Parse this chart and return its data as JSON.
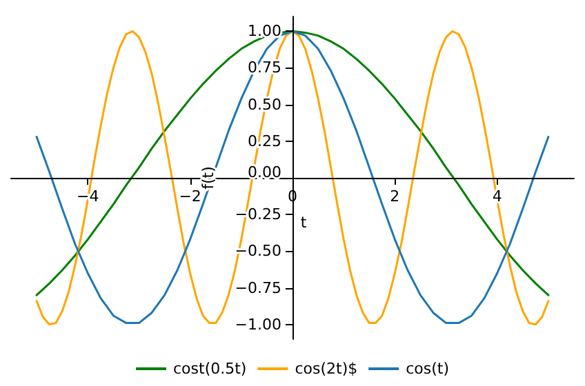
{
  "chart_data": {
    "type": "line",
    "xlabel": "t",
    "ylabel": "f(t)",
    "xlim": [
      -5.5,
      5.5
    ],
    "ylim": [
      -1.1,
      1.1
    ],
    "xticks": [
      {
        "value": -4,
        "label": "−4"
      },
      {
        "value": -2,
        "label": "−2"
      },
      {
        "value": 0,
        "label": "0"
      },
      {
        "value": 2,
        "label": "2"
      },
      {
        "value": 4,
        "label": "4"
      }
    ],
    "yticks": [
      {
        "value": -1,
        "label": "−1.00"
      },
      {
        "value": -0.75,
        "label": "−0.75"
      },
      {
        "value": -0.5,
        "label": "−0.50"
      },
      {
        "value": -0.25,
        "label": "−0.25"
      },
      {
        "value": 0,
        "label": "0.00"
      },
      {
        "value": 0.25,
        "label": "0.25"
      },
      {
        "value": 0.5,
        "label": "0.50"
      },
      {
        "value": 0.75,
        "label": "0.75"
      },
      {
        "value": 1,
        "label": "1.00"
      }
    ],
    "grid": false,
    "legend": "bottom",
    "marker": "none",
    "line_style": "solid",
    "series": [
      {
        "name": "cost(0.5t)",
        "color": "#008000",
        "x": [
          -5,
          -4.75,
          -4.5,
          -4.25,
          -4,
          -3.75,
          -3.5,
          -3.25,
          -3,
          -2.75,
          -2.5,
          -2.25,
          -2,
          -1.75,
          -1.5,
          -1.25,
          -1,
          -0.75,
          -0.5,
          -0.25,
          0,
          0.25,
          0.5,
          0.75,
          1,
          1.25,
          1.5,
          1.75,
          2,
          2.25,
          2.5,
          2.75,
          3,
          3.25,
          3.5,
          3.75,
          4,
          4.25,
          4.5,
          4.75,
          5
        ],
        "values": [
          -0.8,
          -0.72,
          -0.63,
          -0.53,
          -0.42,
          -0.3,
          -0.18,
          -0.05,
          0.07,
          0.2,
          0.32,
          0.43,
          0.54,
          0.64,
          0.73,
          0.81,
          0.88,
          0.93,
          0.97,
          0.99,
          1,
          0.99,
          0.97,
          0.93,
          0.88,
          0.81,
          0.73,
          0.64,
          0.54,
          0.43,
          0.32,
          0.2,
          0.07,
          -0.05,
          -0.18,
          -0.3,
          -0.42,
          -0.53,
          -0.63,
          -0.72,
          -0.8
        ]
      },
      {
        "name": "cos(2t)$",
        "color": "#ffa500",
        "x": [
          -5,
          -4.875,
          -4.75,
          -4.625,
          -4.5,
          -4.375,
          -4.25,
          -4.125,
          -4,
          -3.875,
          -3.75,
          -3.625,
          -3.5,
          -3.375,
          -3.25,
          -3.125,
          -3,
          -2.875,
          -2.75,
          -2.625,
          -2.5,
          -2.375,
          -2.25,
          -2.125,
          -2,
          -1.875,
          -1.75,
          -1.625,
          -1.5,
          -1.375,
          -1.25,
          -1.125,
          -1,
          -0.875,
          -0.75,
          -0.625,
          -0.5,
          -0.375,
          -0.25,
          -0.125,
          0,
          0.125,
          0.25,
          0.375,
          0.5,
          0.625,
          0.75,
          0.875,
          1,
          1.125,
          1.25,
          1.375,
          1.5,
          1.625,
          1.75,
          1.875,
          2,
          2.125,
          2.25,
          2.375,
          2.5,
          2.625,
          2.75,
          2.875,
          3,
          3.125,
          3.25,
          3.375,
          3.5,
          3.625,
          3.75,
          3.875,
          4,
          4.125,
          4.25,
          4.375,
          4.5,
          4.625,
          4.75,
          4.875,
          5
        ],
        "values": [
          -0.84,
          -0.95,
          -1,
          -0.99,
          -0.91,
          -0.78,
          -0.6,
          -0.39,
          -0.15,
          0.11,
          0.35,
          0.57,
          0.75,
          0.89,
          0.98,
          1,
          0.96,
          0.86,
          0.71,
          0.51,
          0.28,
          0.04,
          -0.21,
          -0.45,
          -0.65,
          -0.82,
          -0.94,
          -0.99,
          -0.99,
          -0.92,
          -0.8,
          -0.63,
          -0.42,
          -0.18,
          0.07,
          0.32,
          0.54,
          0.73,
          0.88,
          0.97,
          1,
          0.97,
          0.88,
          0.73,
          0.54,
          0.32,
          0.07,
          -0.18,
          -0.42,
          -0.63,
          -0.8,
          -0.92,
          -0.99,
          -0.99,
          -0.94,
          -0.82,
          -0.65,
          -0.45,
          -0.21,
          0.04,
          0.28,
          0.51,
          0.71,
          0.86,
          0.96,
          1,
          0.98,
          0.89,
          0.75,
          0.57,
          0.35,
          0.11,
          -0.15,
          -0.39,
          -0.6,
          -0.78,
          -0.91,
          -0.99,
          -1,
          -0.95,
          -0.84
        ]
      },
      {
        "name": "cos(t)",
        "color": "#1f77b4",
        "x": [
          -5,
          -4.75,
          -4.5,
          -4.25,
          -4,
          -3.75,
          -3.5,
          -3.25,
          -3,
          -2.75,
          -2.5,
          -2.25,
          -2,
          -1.75,
          -1.5,
          -1.25,
          -1,
          -0.75,
          -0.5,
          -0.25,
          0,
          0.25,
          0.5,
          0.75,
          1,
          1.25,
          1.5,
          1.75,
          2,
          2.25,
          2.5,
          2.75,
          3,
          3.25,
          3.5,
          3.75,
          4,
          4.25,
          4.5,
          4.75,
          5
        ],
        "values": [
          0.28,
          0.04,
          -0.21,
          -0.45,
          -0.65,
          -0.82,
          -0.94,
          -0.99,
          -0.99,
          -0.92,
          -0.8,
          -0.63,
          -0.42,
          -0.18,
          0.07,
          0.32,
          0.54,
          0.73,
          0.88,
          0.97,
          1,
          0.97,
          0.88,
          0.73,
          0.54,
          0.32,
          0.07,
          -0.18,
          -0.42,
          -0.63,
          -0.8,
          -0.92,
          -0.99,
          -0.99,
          -0.94,
          -0.82,
          -0.65,
          -0.45,
          -0.21,
          0.04,
          0.28
        ]
      }
    ]
  }
}
